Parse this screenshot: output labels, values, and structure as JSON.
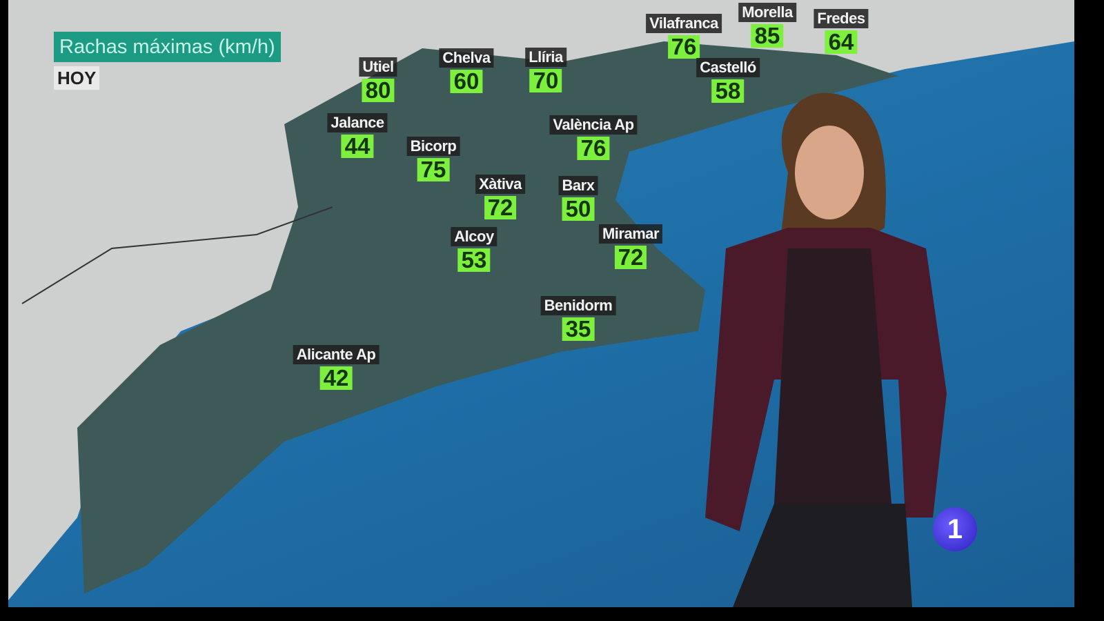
{
  "map": {
    "title": "Rachas máximas (km/h)",
    "subtitle": "HOY",
    "stations": [
      {
        "name": "Utiel",
        "value": "80"
      },
      {
        "name": "Chelva",
        "value": "60"
      },
      {
        "name": "Llíria",
        "value": "70"
      },
      {
        "name": "Vilafranca",
        "value": "76"
      },
      {
        "name": "Morella",
        "value": "85"
      },
      {
        "name": "Fredes",
        "value": "64"
      },
      {
        "name": "Castelló",
        "value": "58"
      },
      {
        "name": "Jalance",
        "value": "44"
      },
      {
        "name": "Bicorp",
        "value": "75"
      },
      {
        "name": "València Ap",
        "value": "76"
      },
      {
        "name": "Xàtiva",
        "value": "72"
      },
      {
        "name": "Barx",
        "value": "50"
      },
      {
        "name": "Alcoy",
        "value": "53"
      },
      {
        "name": "Miramar",
        "value": "72"
      },
      {
        "name": "Benidorm",
        "value": "35"
      },
      {
        "name": "Alicante Ap",
        "value": "42"
      }
    ],
    "colors": {
      "sea": "#1f6fa8",
      "land": "#3e5a58",
      "inland": "#c9ccca",
      "title_bg": "#1c9a83",
      "value_bg": "#7cf03c"
    }
  },
  "channel_logo": "1"
}
